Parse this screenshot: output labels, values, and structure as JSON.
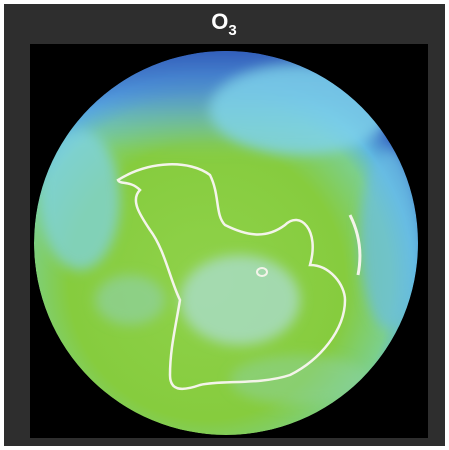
{
  "title": {
    "base": "O",
    "subscript": "3"
  }
}
